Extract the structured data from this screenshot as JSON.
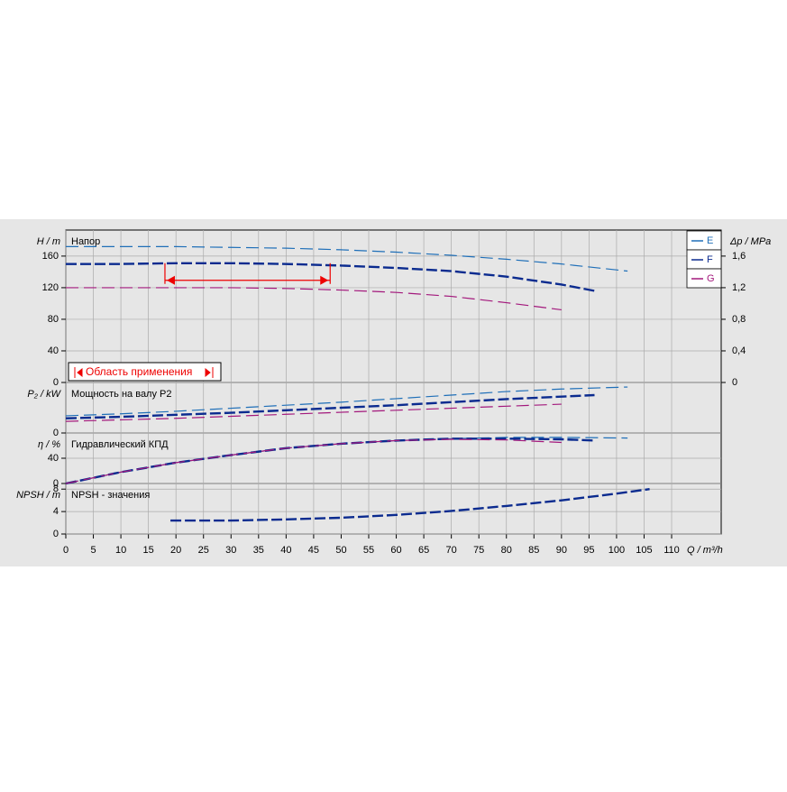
{
  "chart_data": [
    {
      "type": "line",
      "title": "Напор",
      "y_label": "H / m",
      "y2_label": "Δp / MPa",
      "ylim": [
        0,
        193
      ],
      "yticks": [
        0,
        40,
        80,
        120,
        160
      ],
      "y2lim": [
        0,
        1.93
      ],
      "y2ticks": [
        0,
        {
          "value": 0.4,
          "label": "0,4"
        },
        {
          "value": 0.8,
          "label": "0,8"
        },
        {
          "value": 1.2,
          "label": "1,2"
        },
        {
          "value": 1.6,
          "label": "1,6"
        }
      ],
      "legend": "right",
      "grid": true,
      "annotation": "Область применения",
      "operating_range": [
        18,
        48
      ],
      "series": [
        {
          "name": "E",
          "color": "#1f6fb8",
          "x": [
            0,
            10,
            20,
            30,
            40,
            50,
            60,
            70,
            80,
            90,
            102
          ],
          "values": [
            172,
            172,
            172,
            171,
            170,
            168,
            165,
            161,
            156,
            150,
            141
          ]
        },
        {
          "name": "F",
          "color": "#0b2b8f",
          "x": [
            0,
            10,
            20,
            30,
            40,
            50,
            60,
            70,
            80,
            90,
            96
          ],
          "values": [
            150,
            150,
            151,
            151,
            150,
            148,
            145,
            141,
            134,
            124,
            116
          ]
        },
        {
          "name": "G",
          "color": "#a3187c",
          "x": [
            0,
            10,
            20,
            30,
            40,
            50,
            60,
            70,
            80,
            90
          ],
          "values": [
            120,
            120,
            120,
            120,
            119,
            117,
            114,
            109,
            101,
            92
          ]
        }
      ]
    },
    {
      "type": "line",
      "title": "Мощность на валу P2",
      "y_label": "P₂ / kW",
      "ylim": [
        0,
        10
      ],
      "yticks": [
        0
      ],
      "grid": true,
      "series": [
        {
          "color": "#1f6fb8",
          "x": [
            0,
            10,
            20,
            30,
            40,
            50,
            60,
            70,
            80,
            90,
            102
          ],
          "values": [
            3.4,
            3.8,
            4.3,
            4.9,
            5.5,
            6.1,
            6.8,
            7.5,
            8.2,
            8.7,
            9.1
          ]
        },
        {
          "color": "#0b2b8f",
          "x": [
            0,
            10,
            20,
            30,
            40,
            50,
            60,
            70,
            80,
            90,
            96
          ],
          "values": [
            2.9,
            3.2,
            3.6,
            4.0,
            4.5,
            5.0,
            5.5,
            6.1,
            6.7,
            7.2,
            7.5
          ]
        },
        {
          "color": "#a3187c",
          "x": [
            0,
            10,
            20,
            30,
            40,
            50,
            60,
            70,
            80,
            90
          ],
          "values": [
            2.3,
            2.6,
            2.9,
            3.3,
            3.7,
            4.1,
            4.5,
            4.9,
            5.3,
            5.7
          ]
        }
      ]
    },
    {
      "type": "line",
      "title": "Гидравлический КПД",
      "y_label": "η / %",
      "ylim": [
        0,
        80
      ],
      "yticks": [
        0,
        40
      ],
      "grid": true,
      "series": [
        {
          "color": "#1f6fb8",
          "x": [
            0,
            10,
            20,
            30,
            40,
            50,
            60,
            70,
            80,
            90,
            102
          ],
          "values": [
            0,
            18,
            33,
            45,
            56,
            63,
            68,
            71,
            73,
            73,
            72
          ]
        },
        {
          "color": "#0b2b8f",
          "x": [
            0,
            10,
            20,
            30,
            40,
            50,
            60,
            70,
            80,
            90,
            96
          ],
          "values": [
            0,
            18,
            33,
            45,
            56,
            63,
            68,
            71,
            71,
            70,
            68
          ]
        },
        {
          "color": "#a3187c",
          "x": [
            0,
            10,
            20,
            30,
            40,
            50,
            60,
            70,
            80,
            90
          ],
          "values": [
            0,
            18,
            33,
            45,
            56,
            63,
            68,
            70,
            69,
            65
          ]
        }
      ]
    },
    {
      "type": "line",
      "title": "NPSH - значения",
      "y_label": "NPSH / m",
      "x_label": "Q / m³/h",
      "ylim": [
        0,
        9
      ],
      "yticks": [
        0,
        4,
        8
      ],
      "grid": true,
      "xlim": [
        0,
        119
      ],
      "xticks": [
        0,
        5,
        10,
        15,
        20,
        25,
        30,
        35,
        40,
        45,
        50,
        55,
        60,
        65,
        70,
        75,
        80,
        85,
        90,
        95,
        100,
        105,
        110
      ],
      "series": [
        {
          "color": "#0b2b8f",
          "x": [
            19,
            30,
            40,
            50,
            60,
            70,
            80,
            90,
            100,
            106
          ],
          "values": [
            2.4,
            2.4,
            2.6,
            2.9,
            3.4,
            4.1,
            5.0,
            6.0,
            7.2,
            8.0
          ]
        }
      ]
    }
  ]
}
